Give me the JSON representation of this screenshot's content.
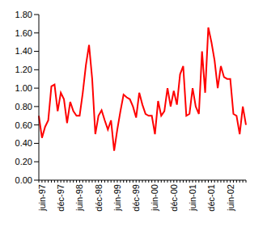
{
  "chart_data": {
    "type": "line",
    "categories": [
      "juin-97",
      null,
      null,
      null,
      null,
      null,
      "déc-97",
      null,
      null,
      null,
      null,
      null,
      "juin-98",
      null,
      null,
      null,
      null,
      null,
      "déc-98",
      null,
      null,
      null,
      null,
      null,
      "juin-99",
      null,
      null,
      null,
      null,
      null,
      "déc-99",
      null,
      null,
      null,
      null,
      null,
      "juin-00",
      null,
      null,
      null,
      null,
      null,
      "déc-00",
      null,
      null,
      null,
      null,
      null,
      "juin-01",
      null,
      null,
      null,
      null,
      null,
      "déc-01",
      null,
      null,
      null,
      null,
      null,
      "juin-02",
      null,
      null,
      null,
      null,
      null,
      null
    ],
    "values": [
      0.7,
      0.46,
      0.58,
      0.65,
      1.02,
      1.04,
      0.75,
      0.95,
      0.88,
      0.62,
      0.85,
      0.75,
      0.7,
      0.7,
      0.95,
      1.25,
      1.47,
      1.1,
      0.5,
      0.7,
      0.76,
      0.65,
      0.55,
      0.65,
      0.32,
      0.55,
      0.75,
      0.93,
      0.9,
      0.88,
      0.8,
      0.68,
      0.95,
      0.82,
      0.72,
      0.7,
      0.7,
      0.5,
      0.86,
      0.7,
      0.75,
      1.0,
      0.8,
      0.97,
      0.82,
      1.15,
      1.24,
      0.7,
      0.72,
      1.0,
      0.8,
      0.72,
      1.4,
      0.95,
      1.66,
      1.5,
      1.3,
      1.0,
      1.24,
      1.12,
      1.1,
      1.1,
      0.72,
      0.7,
      0.5,
      0.8,
      0.6
    ],
    "color": "#ff0000",
    "ylim": [
      0,
      1.8
    ],
    "yticks": [
      {
        "value": 0,
        "label": "0.00"
      },
      {
        "value": 0.2,
        "label": "0.20"
      },
      {
        "value": 0.4,
        "label": "0.40"
      },
      {
        "value": 0.6,
        "label": "0.60"
      },
      {
        "value": 0.8,
        "label": "0.80"
      },
      {
        "value": 1,
        "label": "1.00"
      },
      {
        "value": 1.2,
        "label": "1.20"
      },
      {
        "value": 1.4,
        "label": "1.40"
      },
      {
        "value": 1.6,
        "label": "1.60"
      },
      {
        "value": 1.8,
        "label": "1.80"
      }
    ],
    "grid": false
  }
}
